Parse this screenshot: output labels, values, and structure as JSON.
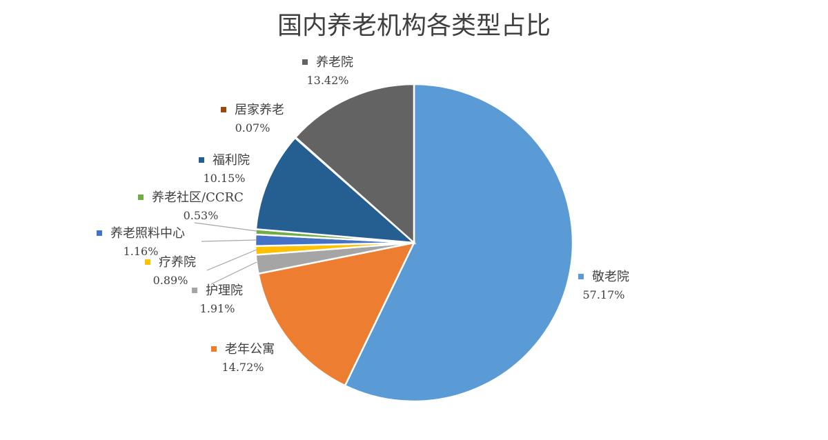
{
  "chart_data": {
    "type": "pie",
    "title": "国内养老机构各类型占比",
    "categories": [
      "敬老院",
      "老年公寓",
      "护理院",
      "疗养院",
      "养老照料中心",
      "养老社区/CCRC",
      "福利院",
      "居家养老",
      "养老院"
    ],
    "values": [
      57.17,
      14.72,
      1.91,
      0.89,
      1.16,
      0.53,
      10.15,
      0.07,
      13.42
    ],
    "value_labels": [
      "57.17%",
      "14.72%",
      "1.91%",
      "0.89%",
      "1.16%",
      "0.53%",
      "10.15%",
      "0.07%",
      "13.42%"
    ],
    "colors": [
      "#5B9BD5",
      "#ED7D31",
      "#A5A5A5",
      "#FFC000",
      "#4472C4",
      "#70AD47",
      "#255E91",
      "#9E480E",
      "#636363"
    ],
    "start_angle_deg": 0,
    "direction": "clockwise",
    "legend": "none",
    "data_labels": "outside-with-leaders"
  }
}
